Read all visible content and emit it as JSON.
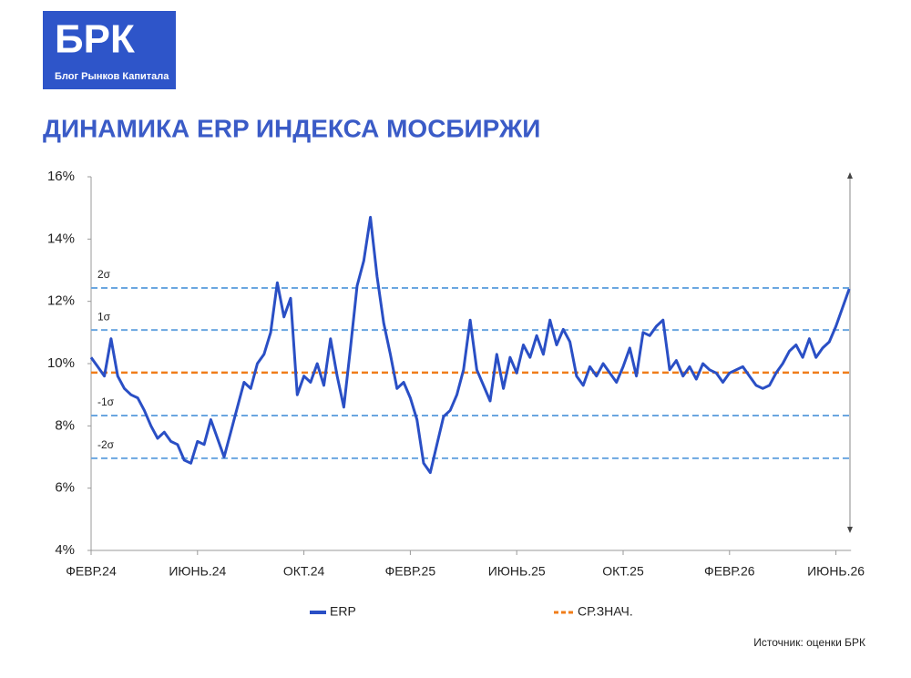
{
  "header": {
    "logo": "БРК",
    "logo_subtitle": "Блог Рынков Капитала"
  },
  "source": "Источник: оценки БРК",
  "chart_data": {
    "type": "line",
    "title": "ДИНАМИКА ERP ИНДЕКСА МОСБИРЖИ",
    "categories": [
      "ФЕВР.24",
      null,
      null,
      null,
      null,
      null,
      null,
      null,
      null,
      null,
      null,
      null,
      null,
      null,
      null,
      null,
      "ИЮНЬ.24",
      null,
      null,
      null,
      null,
      null,
      null,
      null,
      null,
      null,
      null,
      null,
      null,
      null,
      null,
      null,
      "ОКТ.24",
      null,
      null,
      null,
      null,
      null,
      null,
      null,
      null,
      null,
      null,
      null,
      null,
      null,
      null,
      null,
      "ФЕВР.25",
      null,
      null,
      null,
      null,
      null,
      null,
      null,
      null,
      null,
      null,
      null,
      null,
      null,
      null,
      null,
      "ИЮНЬ.25",
      null,
      null,
      null,
      null,
      null,
      null,
      null,
      null,
      null,
      null,
      null,
      null,
      null,
      null,
      null,
      "ОКТ.25",
      null,
      null,
      null,
      null,
      null,
      null,
      null,
      null,
      null,
      null,
      null,
      null,
      null,
      null,
      null,
      "ФЕВР.26",
      null,
      null,
      null,
      null,
      null,
      null,
      null,
      null,
      null,
      null,
      null,
      null,
      null,
      null,
      null,
      "ИЮНЬ.26",
      null,
      null
    ],
    "series": [
      {
        "name": "ERP",
        "color": "#2a4fc5",
        "values": [
          10.2,
          9.9,
          9.6,
          10.8,
          9.6,
          9.2,
          9.0,
          8.9,
          8.5,
          8.0,
          7.6,
          7.8,
          7.5,
          7.4,
          6.9,
          6.8,
          7.5,
          7.4,
          8.2,
          7.6,
          7.0,
          7.8,
          8.6,
          9.4,
          9.2,
          10.0,
          10.3,
          11.0,
          12.6,
          11.5,
          12.1,
          9.0,
          9.6,
          9.4,
          10.0,
          9.3,
          10.8,
          9.6,
          8.6,
          10.5,
          12.5,
          13.3,
          14.7,
          12.8,
          11.3,
          10.3,
          9.2,
          9.4,
          8.9,
          8.2,
          6.8,
          6.5,
          7.4,
          8.3,
          8.5,
          9.0,
          9.8,
          11.4,
          9.8,
          9.3,
          8.8,
          10.3,
          9.2,
          10.2,
          9.7,
          10.6,
          10.2,
          10.9,
          10.3,
          11.4,
          10.6,
          11.1,
          10.7,
          9.6,
          9.3,
          9.9,
          9.6,
          10.0,
          9.7,
          9.4,
          9.9,
          10.5,
          9.6,
          11.0,
          10.9,
          11.2,
          11.4,
          9.8,
          10.1,
          9.6,
          9.9,
          9.5,
          10.0,
          9.8,
          9.7,
          9.4,
          9.7,
          9.8,
          9.9,
          9.6,
          9.3,
          9.2,
          9.3,
          9.7,
          10.0,
          10.4,
          10.6,
          10.2,
          10.8,
          10.2,
          10.5,
          10.7,
          11.2,
          11.8,
          12.4
        ]
      }
    ],
    "mean_line": {
      "name": "СР.ЗНАЧ.",
      "value": 9.71,
      "color": "#f07d1a"
    },
    "reference_lines": [
      {
        "label": "2σ",
        "value": 12.43
      },
      {
        "label": "1σ",
        "value": 11.08
      },
      {
        "label": "-1σ",
        "value": 8.33
      },
      {
        "label": "-2σ",
        "value": 6.96
      }
    ],
    "reference_color": "#6aa6e0",
    "ylim": [
      4,
      16
    ],
    "yticks": [
      {
        "value": 4,
        "label": "4%"
      },
      {
        "value": 6,
        "label": "6%"
      },
      {
        "value": 8,
        "label": "8%"
      },
      {
        "value": 10,
        "label": "10%"
      },
      {
        "value": 12,
        "label": "12%"
      },
      {
        "value": 14,
        "label": "14%"
      },
      {
        "value": 16,
        "label": "16%"
      }
    ]
  }
}
